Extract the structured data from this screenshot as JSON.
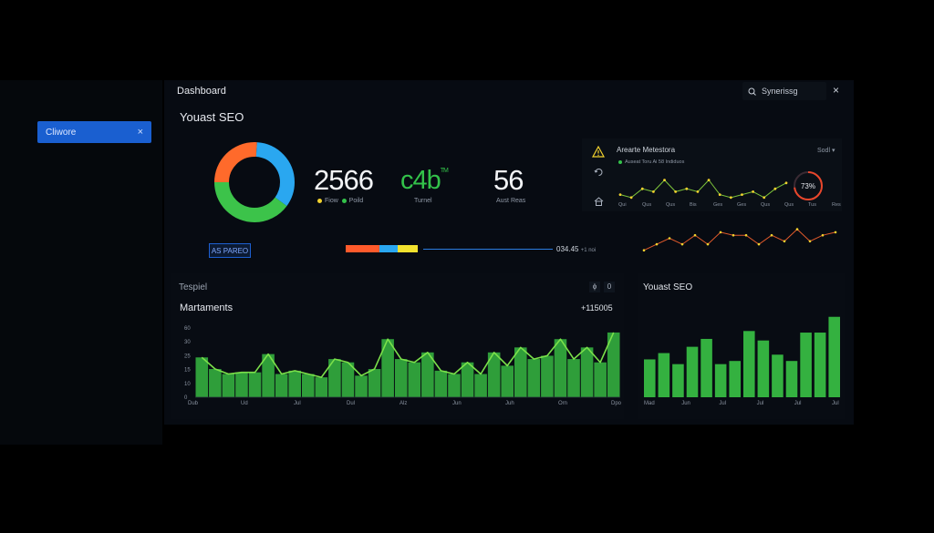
{
  "header": {
    "title": "Dashboard",
    "search_placeholder": "Synerissg",
    "close_icon": "×"
  },
  "sidebar": {
    "active_item": {
      "label": "Cliwore",
      "close": "×"
    }
  },
  "summary": {
    "section_title": "Youast SEO",
    "kpis": [
      {
        "value": "2566",
        "legend": [
          {
            "label": "Fiow",
            "color": "#f2d22e"
          },
          {
            "label": "Poild",
            "color": "#33c24a"
          }
        ]
      },
      {
        "value": "c4b",
        "sup": "TM",
        "caption": "Turnel"
      },
      {
        "value": "56",
        "caption": "Aust Reas"
      }
    ],
    "donut": [
      {
        "label": "orange",
        "value": 0.26,
        "color": "#ff6a2b"
      },
      {
        "label": "blue",
        "value": 0.34,
        "color": "#2aa7f0"
      },
      {
        "label": "green",
        "value": 0.4,
        "color": "#3cc34a"
      }
    ],
    "badge": "AS PAREO",
    "segments": [
      {
        "color": "#ff5a2b",
        "value": 37
      },
      {
        "color": "#2aa7f0",
        "value": 20
      },
      {
        "color": "#f2e22e",
        "value": 22
      }
    ],
    "progress_value": "034.45",
    "progress_unit": "+1 noi"
  },
  "alerts": {
    "title": "Arearte Metestora",
    "sort": "Sodl ▾",
    "subtitle": "Auseat Toru Ai 58 Indiduos",
    "gauge_value": "73%",
    "gauge_fraction": 0.73,
    "x_ticks": [
      "Qui",
      "Qus",
      "Qus",
      "Bis",
      "Ges",
      "Ges",
      "Qus",
      "Qus",
      "Tus",
      "Res"
    ],
    "line_green": [
      7,
      6,
      9,
      8,
      12,
      8,
      9,
      8,
      12,
      7,
      6,
      7,
      8,
      6,
      9,
      11
    ],
    "line_orange": [
      4,
      6,
      8,
      6,
      9,
      6,
      10,
      9,
      9,
      6,
      9,
      7,
      11,
      7,
      9,
      10
    ]
  },
  "bottom_left": {
    "tab": "Tespiel",
    "controls": [
      "ϕ",
      "0"
    ],
    "title": "Martaments",
    "total": "+115005",
    "y_ticks": [
      "60",
      "30",
      "25",
      "15",
      "10",
      "0"
    ],
    "x_ticks": [
      "Dub",
      "Ud",
      "Jul",
      "Dul",
      "Alz",
      "Jun",
      "Juh",
      "Orn",
      "Dpo"
    ],
    "values": [
      24,
      17,
      14,
      15,
      15,
      26,
      14,
      16,
      14,
      12,
      23,
      21,
      13,
      17,
      35,
      23,
      21,
      27,
      16,
      14,
      21,
      14,
      27,
      19,
      30,
      23,
      25,
      35,
      23,
      30,
      21,
      39
    ]
  },
  "bottom_right": {
    "title": "Youast SEO",
    "x_ticks": [
      "Mad",
      "Jun",
      "Jul",
      "Jul",
      "Jul",
      "Jul"
    ],
    "values": [
      24,
      28,
      21,
      32,
      37,
      21,
      23,
      42,
      36,
      27,
      23,
      41,
      41,
      51
    ]
  },
  "chart_data": [
    {
      "type": "area",
      "title": "Martaments",
      "x": [
        "Dub",
        "Ud",
        "Jul",
        "Dul",
        "Alz",
        "Jun",
        "Juh",
        "Orn",
        "Dpo"
      ],
      "ylim": [
        0,
        60
      ]
    },
    {
      "type": "bar",
      "title": "Youast SEO"
    }
  ]
}
